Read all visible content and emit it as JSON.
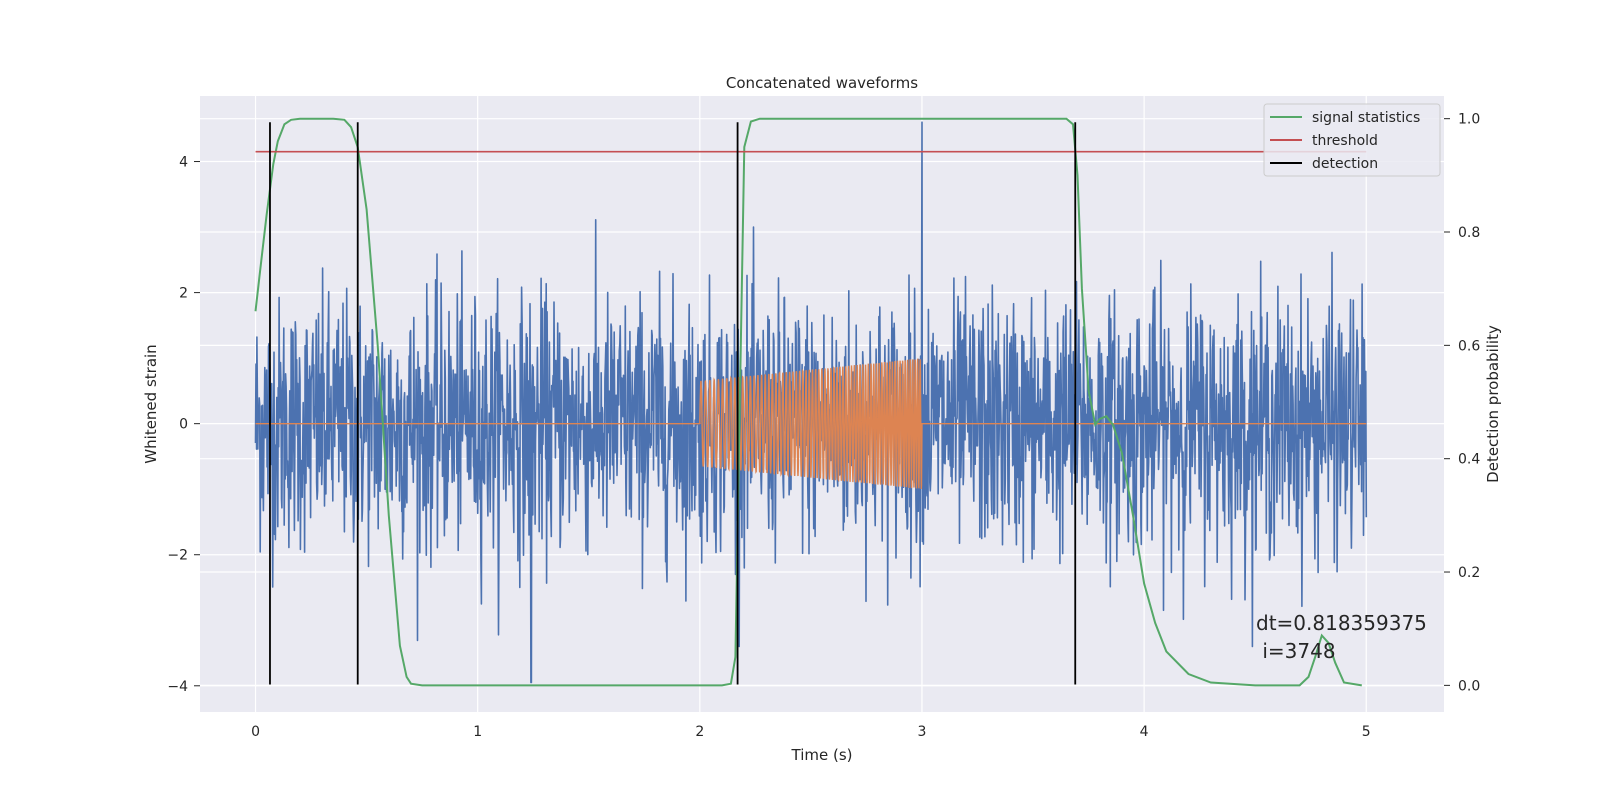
{
  "chart_data": {
    "type": "line",
    "title": "Concatenated waveforms",
    "xlabel": "Time (s)",
    "ylabel": "Whitened strain",
    "y2label": "Detection probability",
    "xlim": [
      -0.25,
      5.35
    ],
    "ylim": [
      -4.4,
      5.0
    ],
    "y2lim": [
      -0.047,
      1.04
    ],
    "xticks": [
      0,
      1,
      2,
      3,
      4,
      5
    ],
    "xtick_labels": [
      "0",
      "1",
      "2",
      "3",
      "4",
      "5"
    ],
    "yticks": [
      -4,
      -2,
      0,
      2,
      4
    ],
    "ytick_labels": [
      "−4",
      "−2",
      "0",
      "2",
      "4"
    ],
    "y2ticks": [
      0.0,
      0.2,
      0.4,
      0.6,
      0.8,
      1.0
    ],
    "y2tick_labels": [
      "0.0",
      "0.2",
      "0.4",
      "0.6",
      "0.8",
      "1.0"
    ],
    "grid": true,
    "legend_position": "top-right",
    "series": [
      {
        "name": "",
        "kind": "noise",
        "axis": "left",
        "color": "#4c72b0",
        "x_range": [
          0,
          5
        ],
        "typical_amplitude": 1.0,
        "max_peak": 4.6,
        "min_trough": -3.95
      },
      {
        "name": "",
        "kind": "chirp",
        "axis": "left",
        "color": "#dd8452",
        "x_range": [
          0,
          5
        ],
        "chirp_range": [
          2.0,
          3.0
        ],
        "amplitude_start": 0.65,
        "amplitude_end": 1.0,
        "cycles": 70
      },
      {
        "name": "signal statistics",
        "axis": "right",
        "color": "#55a868",
        "x": [
          0.0,
          0.02,
          0.05,
          0.08,
          0.1,
          0.13,
          0.16,
          0.2,
          0.25,
          0.3,
          0.35,
          0.4,
          0.43,
          0.46,
          0.5,
          0.55,
          0.6,
          0.65,
          0.68,
          0.7,
          0.75,
          0.8,
          1.0,
          1.5,
          2.0,
          2.1,
          2.14,
          2.16,
          2.18,
          2.2,
          2.23,
          2.27,
          2.3,
          2.5,
          3.0,
          3.5,
          3.65,
          3.68,
          3.7,
          3.72,
          3.75,
          3.78,
          3.8,
          3.83,
          3.86,
          3.9,
          3.95,
          4.0,
          4.05,
          4.1,
          4.2,
          4.3,
          4.5,
          4.7,
          4.74,
          4.77,
          4.8,
          4.83,
          4.86,
          4.9,
          4.98
        ],
        "values": [
          0.66,
          0.73,
          0.83,
          0.92,
          0.96,
          0.99,
          0.998,
          1.0,
          1.0,
          1.0,
          1.0,
          0.998,
          0.985,
          0.95,
          0.84,
          0.6,
          0.3,
          0.07,
          0.015,
          0.003,
          0.0,
          0.0,
          0.0,
          0.0,
          0.0,
          0.0,
          0.003,
          0.05,
          0.5,
          0.95,
          0.995,
          1.0,
          1.0,
          1.0,
          1.0,
          1.0,
          1.0,
          0.99,
          0.9,
          0.7,
          0.52,
          0.46,
          0.47,
          0.475,
          0.46,
          0.41,
          0.3,
          0.18,
          0.11,
          0.06,
          0.02,
          0.005,
          0.0,
          0.0,
          0.015,
          0.05,
          0.088,
          0.075,
          0.04,
          0.005,
          0.0
        ]
      },
      {
        "name": "threshold",
        "axis": "left",
        "color": "#c44e52",
        "x": [
          0,
          5
        ],
        "values": [
          4.15,
          4.15
        ]
      },
      {
        "name": "detection",
        "axis": "left",
        "color": "#000000",
        "kind": "vlines",
        "x": [
          0.065,
          0.46,
          2.17,
          3.69
        ],
        "ymin": -3.98,
        "ymax": 4.6
      }
    ],
    "annotations": [
      "dt=0.818359375",
      " i=3748"
    ]
  }
}
